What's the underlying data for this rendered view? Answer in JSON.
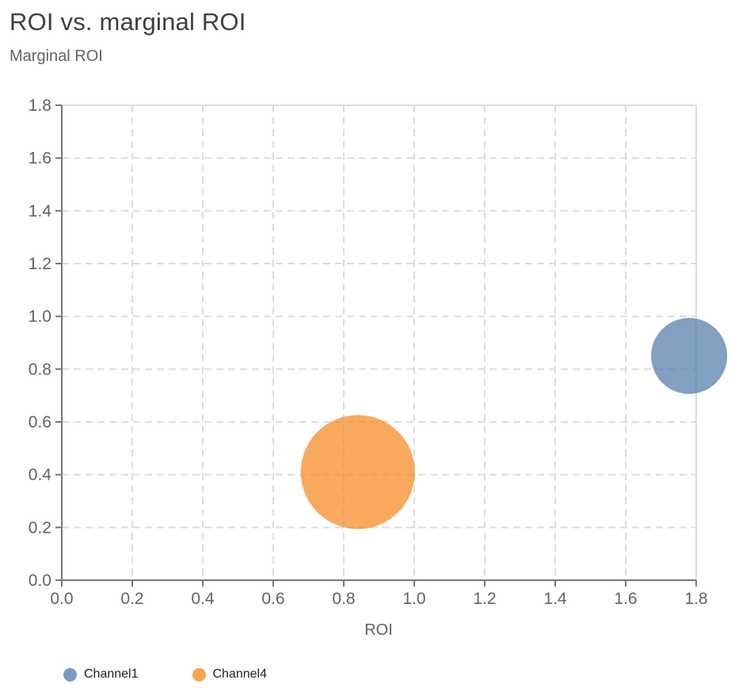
{
  "chart_data": {
    "type": "scatter",
    "subtype": "bubble",
    "title": "ROI vs. marginal ROI",
    "ylabel": "Marginal ROI",
    "xlabel": "ROI",
    "xlim": [
      0,
      1.8
    ],
    "ylim": [
      0,
      1.8
    ],
    "xticks": [
      "0.0",
      "0.2",
      "0.4",
      "0.6",
      "0.8",
      "1.0",
      "1.2",
      "1.4",
      "1.6",
      "1.8"
    ],
    "yticks": [
      "0.0",
      "0.2",
      "0.4",
      "0.6",
      "0.8",
      "1.0",
      "1.2",
      "1.4",
      "1.6",
      "1.8"
    ],
    "grid": "dashed",
    "legend_position": "bottom-left",
    "bubble_opacity": 0.7,
    "series": [
      {
        "name": "Channel1",
        "color": "#4C78A8",
        "points": [
          {
            "x": 1.78,
            "y": 0.85,
            "radius_px": 48
          }
        ]
      },
      {
        "name": "Channel4",
        "color": "#F58518",
        "points": [
          {
            "x": 0.84,
            "y": 0.41,
            "radius_px": 72
          }
        ]
      }
    ],
    "colors": {
      "title": "#3c4043",
      "axis_label": "#5f6368",
      "tick_label": "#5f6368",
      "axis_line": "#757575",
      "gridline": "#dadce0",
      "legend_label": "#1f1f1f",
      "background": "#ffffff"
    }
  }
}
